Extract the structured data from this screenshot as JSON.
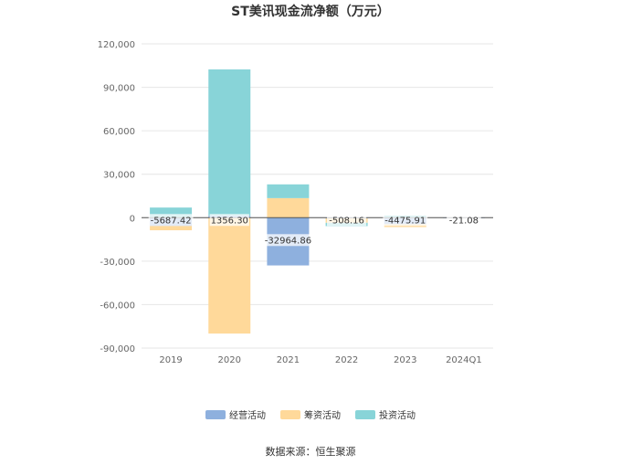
{
  "chart_data": {
    "type": "bar",
    "stacked": true,
    "title": "ST美讯现金流净额（万元）",
    "categories": [
      "2019",
      "2020",
      "2021",
      "2022",
      "2023",
      "2024Q1"
    ],
    "series": [
      {
        "name": "经营活动",
        "color": "#8eb0de",
        "values": [
          -5687.42,
          1356.3,
          -32964.86,
          -508.16,
          -4475.91,
          -21.08
        ]
      },
      {
        "name": "筹资活动",
        "color": "#ffd99a",
        "values": [
          -3000,
          -80000,
          13500,
          -3000,
          -2000,
          0
        ]
      },
      {
        "name": "投资活动",
        "color": "#88d4d8",
        "values": [
          7000,
          101000,
          9500,
          -2300,
          1500,
          0
        ]
      }
    ],
    "data_labels": [
      "-5687.42",
      "1356.30",
      "-32964.86",
      "-508.16",
      "-4475.91",
      "-21.08"
    ],
    "ylim": [
      -90000,
      120000
    ],
    "yticks": [
      120000,
      90000,
      60000,
      30000,
      0,
      -30000,
      -60000,
      -90000
    ],
    "ytick_labels": [
      "120,000",
      "90,000",
      "60,000",
      "30,000",
      "0",
      "-30,000",
      "-60,000",
      "-90,000"
    ],
    "grid": true,
    "legend_position": "bottom"
  },
  "source_text": "数据来源：恒生聚源"
}
